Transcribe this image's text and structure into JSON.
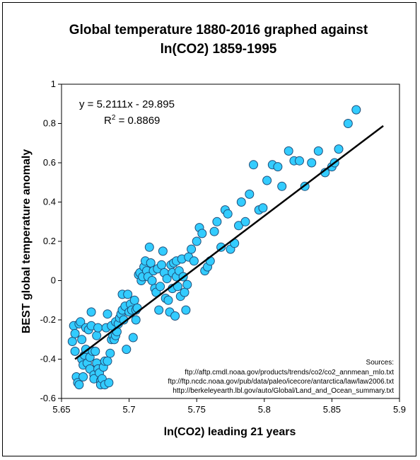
{
  "chart_data": {
    "type": "scatter",
    "title_lines": [
      "Global temperature 1880-2016 graphed against",
      "ln(CO2) 1859-1995"
    ],
    "xlabel": "ln(CO2) leading 21 years",
    "ylabel": "BEST global temperature anomaly",
    "xlim": [
      5.65,
      5.9
    ],
    "ylim": [
      -0.6,
      1.0
    ],
    "x_ticks": [
      "5.65",
      "5.7",
      "5.75",
      "5.8",
      "5.85",
      "5.9"
    ],
    "y_ticks": [
      "-0.6",
      "-0.4",
      "-0.2",
      "0",
      "0.2",
      "0.4",
      "0.6",
      "0.8",
      "1"
    ],
    "marker_color": "#33CCFF",
    "marker_edge": "#1F4E79",
    "trendline": {
      "slope": 5.2111,
      "intercept": -29.895,
      "x_range": [
        5.66,
        5.888
      ]
    },
    "equation_text": "y = 5.2111x  - 29.895",
    "r2_label": "R",
    "r2_sup": "2",
    "r2_value": " = 0.8869",
    "sources_lines": [
      "Sources:",
      "ftp://aftp.cmdl.noaa.gov/products/trends/co2/co2_annmean_mlo.txt",
      "ftp://ftp.ncdc.noaa.gov/pub/data/paleo/icecore/antarctica/law/law2006.txt",
      "http://berkeleyearth.lbl.gov/auto/Global/Land_and_Ocean_summary.txt"
    ],
    "points": [
      [
        5.658,
        -0.31
      ],
      [
        5.659,
        -0.23
      ],
      [
        5.66,
        -0.27
      ],
      [
        5.66,
        -0.36
      ],
      [
        5.661,
        -0.49
      ],
      [
        5.662,
        -0.52
      ],
      [
        5.663,
        -0.53
      ],
      [
        5.663,
        -0.22
      ],
      [
        5.664,
        -0.21
      ],
      [
        5.665,
        -0.3
      ],
      [
        5.665,
        -0.4
      ],
      [
        5.666,
        -0.43
      ],
      [
        5.666,
        -0.49
      ],
      [
        5.667,
        -0.38
      ],
      [
        5.668,
        -0.35
      ],
      [
        5.668,
        -0.24
      ],
      [
        5.669,
        -0.42
      ],
      [
        5.67,
        -0.25
      ],
      [
        5.671,
        -0.45
      ],
      [
        5.671,
        -0.39
      ],
      [
        5.672,
        -0.16
      ],
      [
        5.672,
        -0.23
      ],
      [
        5.673,
        -0.36
      ],
      [
        5.674,
        -0.48
      ],
      [
        5.674,
        -0.5
      ],
      [
        5.675,
        -0.36
      ],
      [
        5.676,
        -0.28
      ],
      [
        5.676,
        -0.42
      ],
      [
        5.677,
        -0.24
      ],
      [
        5.677,
        -0.45
      ],
      [
        5.678,
        -0.47
      ],
      [
        5.679,
        -0.51
      ],
      [
        5.679,
        -0.53
      ],
      [
        5.68,
        -0.5
      ],
      [
        5.681,
        -0.44
      ],
      [
        5.682,
        -0.53
      ],
      [
        5.682,
        -0.41
      ],
      [
        5.683,
        -0.24
      ],
      [
        5.684,
        -0.17
      ],
      [
        5.684,
        -0.41
      ],
      [
        5.685,
        -0.52
      ],
      [
        5.686,
        -0.37
      ],
      [
        5.687,
        -0.23
      ],
      [
        5.687,
        -0.3
      ],
      [
        5.688,
        -0.28
      ],
      [
        5.689,
        -0.3
      ],
      [
        5.69,
        -0.21
      ],
      [
        5.69,
        -0.28
      ],
      [
        5.691,
        -0.26
      ],
      [
        5.692,
        -0.22
      ],
      [
        5.693,
        -0.19
      ],
      [
        5.694,
        -0.17
      ],
      [
        5.695,
        -0.07
      ],
      [
        5.695,
        -0.15
      ],
      [
        5.696,
        -0.2
      ],
      [
        5.697,
        -0.13
      ],
      [
        5.698,
        -0.35
      ],
      [
        5.699,
        -0.07
      ],
      [
        5.7,
        -0.16
      ],
      [
        5.701,
        -0.12
      ],
      [
        5.702,
        -0.15
      ],
      [
        5.703,
        -0.29
      ],
      [
        5.704,
        -0.1
      ],
      [
        5.705,
        -0.15
      ],
      [
        5.705,
        -0.2
      ],
      [
        5.706,
        -0.14
      ],
      [
        5.707,
        0.03
      ],
      [
        5.708,
        0.04
      ],
      [
        5.709,
        0.0
      ],
      [
        5.71,
        0.02
      ],
      [
        5.711,
        0.07
      ],
      [
        5.712,
        0.1
      ],
      [
        5.713,
        0.05
      ],
      [
        5.714,
        0.02
      ],
      [
        5.715,
        0.17
      ],
      [
        5.716,
        0.09
      ],
      [
        5.717,
        0.0
      ],
      [
        5.718,
        0.05
      ],
      [
        5.719,
        -0.04
      ],
      [
        5.72,
        -0.06
      ],
      [
        5.721,
        0.06
      ],
      [
        5.722,
        -0.15
      ],
      [
        5.723,
        -0.03
      ],
      [
        5.724,
        0.08
      ],
      [
        5.725,
        0.15
      ],
      [
        5.726,
        0.04
      ],
      [
        5.727,
        -0.09
      ],
      [
        5.728,
        0.01
      ],
      [
        5.729,
        -0.1
      ],
      [
        5.73,
        -0.16
      ],
      [
        5.731,
        0.08
      ],
      [
        5.732,
        0.04
      ],
      [
        5.732,
        -0.04
      ],
      [
        5.733,
        0.09
      ],
      [
        5.734,
        -0.18
      ],
      [
        5.735,
        0.02
      ],
      [
        5.735,
        0.1
      ],
      [
        5.736,
        -0.03
      ],
      [
        5.737,
        0.05
      ],
      [
        5.738,
        -0.08
      ],
      [
        5.739,
        0.11
      ],
      [
        5.74,
        0.02
      ],
      [
        5.741,
        -0.06
      ],
      [
        5.742,
        -0.15
      ],
      [
        5.743,
        -0.02
      ],
      [
        5.744,
        0.12
      ],
      [
        5.746,
        0.16
      ],
      [
        5.748,
        0.1
      ],
      [
        5.75,
        0.2
      ],
      [
        5.752,
        0.27
      ],
      [
        5.754,
        0.24
      ],
      [
        5.756,
        0.05
      ],
      [
        5.758,
        0.07
      ],
      [
        5.76,
        0.1
      ],
      [
        5.763,
        0.25
      ],
      [
        5.765,
        0.3
      ],
      [
        5.768,
        0.17
      ],
      [
        5.771,
        0.36
      ],
      [
        5.773,
        0.34
      ],
      [
        5.775,
        0.16
      ],
      [
        5.778,
        0.19
      ],
      [
        5.781,
        0.28
      ],
      [
        5.783,
        0.4
      ],
      [
        5.786,
        0.3
      ],
      [
        5.789,
        0.44
      ],
      [
        5.792,
        0.59
      ],
      [
        5.796,
        0.36
      ],
      [
        5.799,
        0.37
      ],
      [
        5.802,
        0.51
      ],
      [
        5.806,
        0.59
      ],
      [
        5.81,
        0.58
      ],
      [
        5.813,
        0.48
      ],
      [
        5.818,
        0.66
      ],
      [
        5.822,
        0.61
      ],
      [
        5.826,
        0.61
      ],
      [
        5.83,
        0.48
      ],
      [
        5.835,
        0.6
      ],
      [
        5.84,
        0.66
      ],
      [
        5.845,
        0.55
      ],
      [
        5.85,
        0.58
      ],
      [
        5.852,
        0.6
      ],
      [
        5.855,
        0.67
      ],
      [
        5.862,
        0.8
      ],
      [
        5.868,
        0.87
      ]
    ]
  }
}
